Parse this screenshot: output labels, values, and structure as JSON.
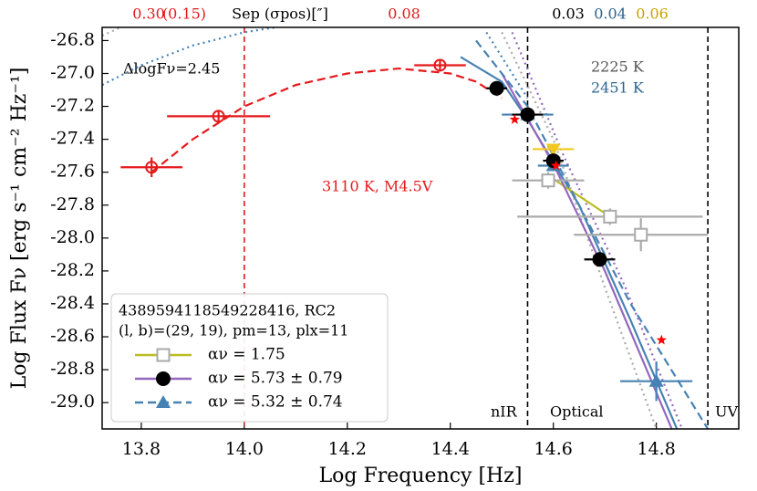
{
  "chart_data": {
    "type": "line",
    "xlabel": "Log Frequency [Hz]",
    "ylabel": "Log Flux Fν [erg s⁻¹ cm⁻² Hz⁻¹]",
    "xlim": [
      13.724,
      14.96
    ],
    "ylim": [
      -29.16,
      -26.72
    ],
    "xticks": [
      13.8,
      {
        "value": 14.0,
        "label": "14.0"
      },
      14.2,
      14.4,
      14.6,
      14.8
    ],
    "yticks": [
      -26.8,
      {
        "value": -27.0,
        "label": "-27.0"
      },
      -27.2,
      -27.4,
      -27.6,
      -27.8,
      {
        "value": -28.0,
        "label": "-28.0"
      },
      -28.2,
      -28.4,
      -28.6,
      -28.8,
      {
        "value": -29.0,
        "label": "-29.0"
      }
    ],
    "top_labels": [
      "0.30",
      "(0.15)",
      "Sep (σpos)[″]",
      "0.08",
      "0.03",
      "0.04",
      "0.06"
    ],
    "annotations": [
      "ΔlogFν=2.45",
      "2225 K",
      "2451 K",
      "3110 K, M4.5V",
      "nIR",
      "Optical",
      "UV"
    ],
    "legend_title": [
      "4389594118549228416, RC2",
      "(l, b)=(29, 19), pm=13, plx=11"
    ],
    "vlines": [
      {
        "x": 14.0,
        "color": "#e41a1c"
      },
      {
        "x": 14.55,
        "color": "#000000"
      },
      {
        "x": 14.9,
        "color": "#000000"
      }
    ],
    "series": [
      {
        "name": "αν = 1.75",
        "color": "#bcbd22",
        "dash": "solid",
        "marker": "square-open",
        "marker_color": "#aaaaaa",
        "x": [
          14.59,
          14.71
        ],
        "y": [
          -27.62,
          -27.87
        ]
      },
      {
        "name": "αν = 5.73 ± 0.79",
        "color": "#9467bd",
        "dash": "solid",
        "marker": "circle",
        "marker_color": "#000000",
        "x": [
          14.5,
          14.6,
          14.7,
          14.83
        ],
        "y": [
          -27.0,
          -27.55,
          -28.2,
          -29.16
        ]
      },
      {
        "name": "αν = 5.32 ± 0.74",
        "color": "#4682b4",
        "dash": "dashed",
        "marker": "triangle",
        "marker_color": "#4682b4",
        "x": [
          14.45,
          14.55,
          14.65,
          14.75,
          14.9
        ],
        "y": [
          -26.8,
          -27.2,
          -27.8,
          -28.4,
          -29.16
        ]
      }
    ],
    "curves": [
      {
        "color": "#e41a1c",
        "dash": "dashed",
        "x": [
          13.82,
          13.9,
          14.0,
          14.1,
          14.2,
          14.3,
          14.4,
          14.45,
          14.5
        ],
        "y": [
          -27.6,
          -27.4,
          -27.2,
          -27.07,
          -27.0,
          -26.97,
          -27.0,
          -27.05,
          -27.15
        ]
      },
      {
        "color": "#4682b4",
        "dash": "solid",
        "x": [
          14.42,
          14.5,
          14.55,
          14.65,
          14.75,
          14.84
        ],
        "y": [
          -26.9,
          -27.05,
          -27.28,
          -27.8,
          -28.5,
          -29.16
        ]
      },
      {
        "color": "#aaaaaa",
        "dash": "dotted",
        "x": [
          14.5,
          14.6,
          14.7,
          14.8
        ],
        "y": [
          -26.75,
          -27.4,
          -28.3,
          -29.16
        ]
      },
      {
        "color": "#aaaaaa",
        "dash": "dotted",
        "x": [
          13.724,
          13.76
        ],
        "y": [
          -26.77,
          -26.72
        ]
      },
      {
        "color": "#9467bd",
        "dash": "dotted",
        "x": [
          14.52,
          14.62,
          14.74,
          14.85
        ],
        "y": [
          -26.75,
          -27.5,
          -28.3,
          -29.16
        ]
      },
      {
        "color": "#4682b4",
        "dash": "dotted",
        "x": [
          13.724,
          13.8,
          13.9,
          14.0,
          14.06
        ],
        "y": [
          -27.07,
          -26.95,
          -26.83,
          -26.75,
          -26.72
        ]
      },
      {
        "color": "#4682b4",
        "dash": "dotted",
        "x": [
          14.47,
          14.51,
          14.55
        ],
        "y": [
          -26.75,
          -26.95,
          -27.15
        ]
      }
    ],
    "points": [
      {
        "color": "#e41a1c",
        "marker": "circle-open",
        "x": [
          13.82,
          13.95,
          14.38
        ],
        "y": [
          -27.57,
          -27.26,
          -26.95
        ],
        "xerr": [
          0.06,
          0.1,
          0.05
        ],
        "yerr": [
          0.06,
          0.03,
          0.03
        ]
      },
      {
        "color": "#aaaaaa",
        "marker": "square-open",
        "x": [
          14.59,
          14.71,
          14.77
        ],
        "y": [
          -27.65,
          -27.87,
          -27.98
        ],
        "xerr": [
          0.07,
          0.18,
          0.13
        ],
        "yerr": [
          0.05,
          0.05,
          0.1
        ]
      },
      {
        "color": "#4682b4",
        "marker": "triangle",
        "x": [
          14.55,
          14.6,
          14.8
        ],
        "y": [
          -27.25,
          -27.56,
          -28.87
        ],
        "xerr": [
          0.05,
          0.03,
          0.07
        ],
        "yerr": [
          0.03,
          0.02,
          0.12
        ]
      },
      {
        "color": "#f2c81d",
        "marker": "triangle-down",
        "x": [
          14.6
        ],
        "y": [
          -27.46
        ],
        "xerr": [
          0.04
        ],
        "yerr": [
          0.02
        ]
      },
      {
        "color": "#000000",
        "marker": "circle",
        "x": [
          14.49,
          14.55,
          14.6,
          14.69
        ],
        "y": [
          -27.09,
          -27.25,
          -27.53,
          -28.13
        ],
        "xerr": [
          0.02,
          0.03,
          0.02,
          0.03
        ],
        "yerr": [
          0.02,
          0.02,
          0.03,
          0.03
        ]
      },
      {
        "color": "#ff0000",
        "marker": "star",
        "x": [
          14.525,
          14.605,
          14.81
        ],
        "y": [
          -27.28,
          -27.56,
          -28.62
        ],
        "xerr": [
          0,
          0,
          0
        ],
        "yerr": [
          0,
          0,
          0
        ]
      }
    ]
  }
}
